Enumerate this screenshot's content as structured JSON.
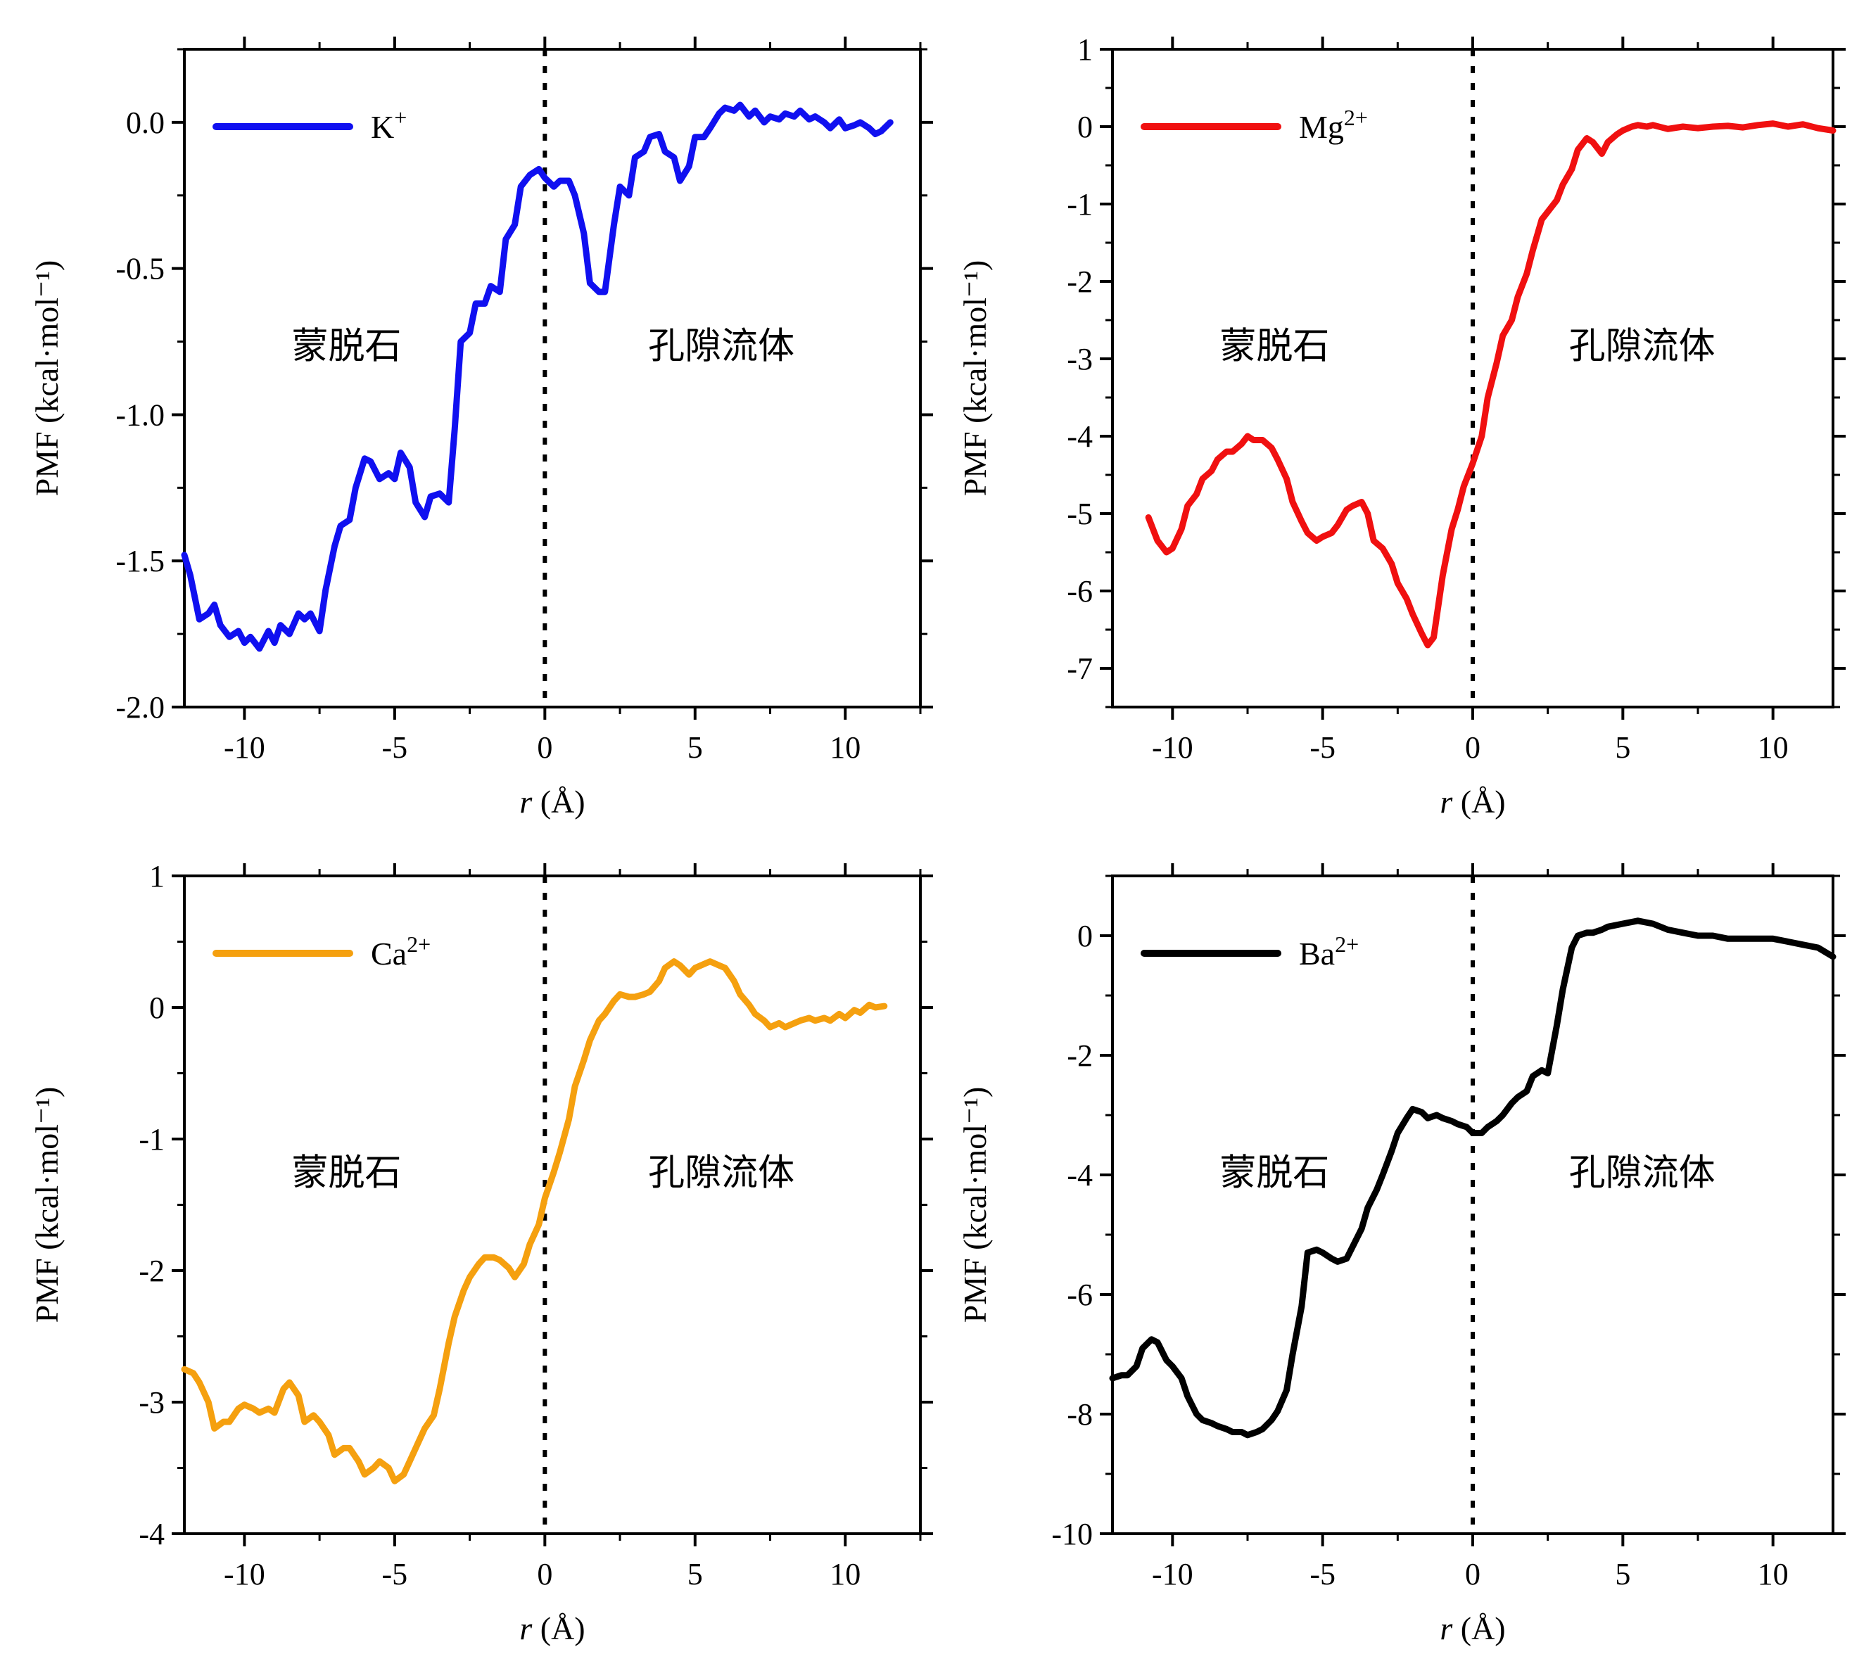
{
  "chart_data": [
    {
      "type": "line",
      "xlabel": "r (Å)",
      "xlabel_italic": "r",
      "xlabel_unit": "(Å)",
      "ylabel": "PMF (kcal·mol⁻¹)",
      "xlim": [
        -12,
        12.5
      ],
      "ylim": [
        -2.0,
        0.25
      ],
      "xticks": [
        "-10",
        "-5",
        "0",
        "5",
        "10"
      ],
      "xtick_values": [
        -10,
        -5,
        0,
        5,
        10
      ],
      "yticks": [
        "-2.0",
        "-1.5",
        "-1.0",
        "-0.5",
        "0.0"
      ],
      "ytick_values": [
        -2.0,
        -1.5,
        -1.0,
        -0.5,
        0.0
      ],
      "divider_x": 0,
      "region_left": "蒙脱石",
      "region_right": "孔隙流体",
      "legend_position": "top-left",
      "series": [
        {
          "name": "K⁺",
          "color": "#1010f0",
          "x": [
            -12,
            -11.8,
            -11.5,
            -11.2,
            -11,
            -10.8,
            -10.5,
            -10.2,
            -10,
            -9.8,
            -9.5,
            -9.2,
            -9,
            -8.8,
            -8.5,
            -8.2,
            -8,
            -7.8,
            -7.5,
            -7.3,
            -7,
            -6.8,
            -6.5,
            -6.3,
            -6,
            -5.8,
            -5.5,
            -5.2,
            -5,
            -4.8,
            -4.5,
            -4.3,
            -4,
            -3.8,
            -3.5,
            -3.2,
            -3,
            -2.8,
            -2.5,
            -2.3,
            -2,
            -1.8,
            -1.5,
            -1.3,
            -1,
            -0.8,
            -0.5,
            -0.2,
            0,
            0.3,
            0.5,
            0.8,
            1,
            1.3,
            1.5,
            1.8,
            2,
            2.3,
            2.5,
            2.8,
            3,
            3.3,
            3.5,
            3.8,
            4,
            4.3,
            4.5,
            4.8,
            5,
            5.3,
            5.5,
            5.8,
            6,
            6.3,
            6.5,
            6.8,
            7,
            7.3,
            7.5,
            7.8,
            8,
            8.3,
            8.5,
            8.8,
            9,
            9.3,
            9.5,
            9.8,
            10,
            10.3,
            10.5,
            10.8,
            11,
            11.2,
            11.5
          ],
          "y": [
            -1.48,
            -1.55,
            -1.7,
            -1.68,
            -1.65,
            -1.72,
            -1.76,
            -1.74,
            -1.78,
            -1.76,
            -1.8,
            -1.74,
            -1.78,
            -1.72,
            -1.75,
            -1.68,
            -1.7,
            -1.68,
            -1.74,
            -1.6,
            -1.45,
            -1.38,
            -1.36,
            -1.25,
            -1.15,
            -1.16,
            -1.22,
            -1.2,
            -1.22,
            -1.13,
            -1.18,
            -1.3,
            -1.35,
            -1.28,
            -1.27,
            -1.3,
            -1.05,
            -0.75,
            -0.72,
            -0.62,
            -0.62,
            -0.56,
            -0.58,
            -0.4,
            -0.35,
            -0.22,
            -0.18,
            -0.16,
            -0.19,
            -0.22,
            -0.2,
            -0.2,
            -0.25,
            -0.38,
            -0.55,
            -0.58,
            -0.58,
            -0.35,
            -0.22,
            -0.25,
            -0.12,
            -0.1,
            -0.05,
            -0.04,
            -0.1,
            -0.12,
            -0.2,
            -0.15,
            -0.05,
            -0.05,
            -0.02,
            0.03,
            0.05,
            0.04,
            0.06,
            0.02,
            0.04,
            0.0,
            0.02,
            0.01,
            0.03,
            0.02,
            0.04,
            0.01,
            0.02,
            0.0,
            -0.02,
            0.01,
            -0.02,
            -0.01,
            0.0,
            -0.02,
            -0.04,
            -0.03,
            0.0
          ]
        }
      ]
    },
    {
      "type": "line",
      "xlabel": "r (Å)",
      "xlabel_italic": "r",
      "xlabel_unit": "(Å)",
      "ylabel": "PMF (kcal·mol⁻¹)",
      "xlim": [
        -12,
        12
      ],
      "ylim": [
        -7.5,
        1.0
      ],
      "xticks": [
        "-10",
        "-5",
        "0",
        "5",
        "10"
      ],
      "xtick_values": [
        -10,
        -5,
        0,
        5,
        10
      ],
      "yticks": [
        "1",
        "0",
        "-1",
        "-2",
        "-3",
        "-4",
        "-5",
        "-6",
        "-7"
      ],
      "ytick_values": [
        1,
        0,
        -1,
        -2,
        -3,
        -4,
        -5,
        -6,
        -7
      ],
      "divider_x": 0,
      "region_left": "蒙脱石",
      "region_right": "孔隙流体",
      "legend_position": "top-left",
      "series": [
        {
          "name": "Mg²⁺",
          "color": "#f01010",
          "x": [
            -10.8,
            -10.5,
            -10.2,
            -10,
            -9.7,
            -9.5,
            -9.2,
            -9,
            -8.7,
            -8.5,
            -8.2,
            -8,
            -7.7,
            -7.5,
            -7.3,
            -7,
            -6.7,
            -6.5,
            -6.2,
            -6,
            -5.7,
            -5.5,
            -5.2,
            -5,
            -4.7,
            -4.5,
            -4.2,
            -4,
            -3.7,
            -3.5,
            -3.3,
            -3,
            -2.7,
            -2.5,
            -2.2,
            -2,
            -1.7,
            -1.5,
            -1.3,
            -1,
            -0.7,
            -0.5,
            -0.3,
            0,
            0.3,
            0.5,
            0.8,
            1,
            1.3,
            1.5,
            1.8,
            2,
            2.3,
            2.5,
            2.8,
            3,
            3.3,
            3.5,
            3.8,
            4,
            4.3,
            4.5,
            4.8,
            5,
            5.3,
            5.5,
            5.8,
            6,
            6.5,
            7,
            7.5,
            8,
            8.5,
            9,
            9.5,
            10,
            10.5,
            11,
            11.5,
            12
          ],
          "y": [
            -5.05,
            -5.35,
            -5.5,
            -5.45,
            -5.2,
            -4.9,
            -4.75,
            -4.55,
            -4.45,
            -4.3,
            -4.2,
            -4.2,
            -4.1,
            -4.0,
            -4.05,
            -4.05,
            -4.15,
            -4.3,
            -4.55,
            -4.85,
            -5.1,
            -5.25,
            -5.35,
            -5.3,
            -5.25,
            -5.15,
            -4.95,
            -4.9,
            -4.85,
            -5.0,
            -5.35,
            -5.45,
            -5.65,
            -5.9,
            -6.1,
            -6.3,
            -6.55,
            -6.7,
            -6.6,
            -5.8,
            -5.2,
            -4.95,
            -4.65,
            -4.35,
            -4.0,
            -3.5,
            -3.05,
            -2.7,
            -2.5,
            -2.2,
            -1.9,
            -1.6,
            -1.2,
            -1.1,
            -0.95,
            -0.75,
            -0.55,
            -0.3,
            -0.15,
            -0.2,
            -0.35,
            -0.2,
            -0.1,
            -0.05,
            0.0,
            0.02,
            0.0,
            0.02,
            -0.03,
            0.0,
            -0.02,
            0.0,
            0.01,
            -0.01,
            0.02,
            0.04,
            0.0,
            0.03,
            -0.02,
            -0.05
          ]
        }
      ]
    },
    {
      "type": "line",
      "xlabel": "r (Å)",
      "xlabel_italic": "r",
      "xlabel_unit": "(Å)",
      "ylabel": "PMF (kcal·mol⁻¹)",
      "xlim": [
        -12,
        12.5
      ],
      "ylim": [
        -4,
        1
      ],
      "xticks": [
        "-10",
        "-5",
        "0",
        "5",
        "10"
      ],
      "xtick_values": [
        -10,
        -5,
        0,
        5,
        10
      ],
      "yticks": [
        "1",
        "0",
        "-1",
        "-2",
        "-3",
        "-4"
      ],
      "ytick_values": [
        1,
        0,
        -1,
        -2,
        -3,
        -4
      ],
      "divider_x": 0,
      "region_left": "蒙脱石",
      "region_right": "孔隙流体",
      "legend_position": "top-left",
      "series": [
        {
          "name": "Ca²⁺",
          "color": "#f5a00f",
          "x": [
            -12,
            -11.7,
            -11.5,
            -11.2,
            -11,
            -10.7,
            -10.5,
            -10.2,
            -10,
            -9.7,
            -9.5,
            -9.2,
            -9,
            -8.7,
            -8.5,
            -8.2,
            -8,
            -7.7,
            -7.5,
            -7.2,
            -7,
            -6.7,
            -6.5,
            -6.2,
            -6,
            -5.7,
            -5.5,
            -5.2,
            -5,
            -4.7,
            -4.5,
            -4.2,
            -4,
            -3.7,
            -3.5,
            -3.2,
            -3,
            -2.7,
            -2.5,
            -2.2,
            -2,
            -1.7,
            -1.5,
            -1.2,
            -1,
            -0.7,
            -0.5,
            -0.2,
            0,
            0.3,
            0.5,
            0.8,
            1,
            1.3,
            1.5,
            1.8,
            2,
            2.3,
            2.5,
            2.8,
            3,
            3.3,
            3.5,
            3.8,
            4,
            4.3,
            4.5,
            4.8,
            5,
            5.3,
            5.5,
            5.8,
            6,
            6.3,
            6.5,
            6.8,
            7,
            7.3,
            7.5,
            7.8,
            8,
            8.3,
            8.5,
            8.8,
            9,
            9.3,
            9.5,
            9.8,
            10,
            10.3,
            10.5,
            10.8,
            11,
            11.3
          ],
          "y": [
            -2.75,
            -2.78,
            -2.85,
            -3.0,
            -3.2,
            -3.15,
            -3.15,
            -3.05,
            -3.02,
            -3.05,
            -3.08,
            -3.05,
            -3.08,
            -2.9,
            -2.85,
            -2.95,
            -3.15,
            -3.1,
            -3.15,
            -3.25,
            -3.4,
            -3.35,
            -3.35,
            -3.45,
            -3.55,
            -3.5,
            -3.45,
            -3.5,
            -3.6,
            -3.55,
            -3.45,
            -3.3,
            -3.2,
            -3.1,
            -2.9,
            -2.55,
            -2.35,
            -2.15,
            -2.05,
            -1.95,
            -1.9,
            -1.9,
            -1.92,
            -1.98,
            -2.05,
            -1.95,
            -1.8,
            -1.65,
            -1.45,
            -1.25,
            -1.1,
            -0.85,
            -0.6,
            -0.4,
            -0.25,
            -0.1,
            -0.05,
            0.05,
            0.1,
            0.08,
            0.08,
            0.1,
            0.12,
            0.2,
            0.3,
            0.35,
            0.32,
            0.25,
            0.3,
            0.33,
            0.35,
            0.32,
            0.3,
            0.2,
            0.1,
            0.02,
            -0.05,
            -0.1,
            -0.15,
            -0.12,
            -0.15,
            -0.12,
            -0.1,
            -0.08,
            -0.1,
            -0.08,
            -0.1,
            -0.05,
            -0.08,
            -0.02,
            -0.04,
            0.02,
            0.0,
            0.01
          ]
        }
      ]
    },
    {
      "type": "line",
      "xlabel": "r (Å)",
      "xlabel_italic": "r",
      "xlabel_unit": "(Å)",
      "ylabel": "PMF (kcal·mol⁻¹)",
      "xlim": [
        -12,
        12
      ],
      "ylim": [
        -10,
        1
      ],
      "xticks": [
        "-10",
        "-5",
        "0",
        "5",
        "10"
      ],
      "xtick_values": [
        -10,
        -5,
        0,
        5,
        10
      ],
      "yticks": [
        "0",
        "-2",
        "-4",
        "-6",
        "-8",
        "-10"
      ],
      "ytick_values": [
        0,
        -2,
        -4,
        -6,
        -8,
        -10
      ],
      "divider_x": 0,
      "region_left": "蒙脱石",
      "region_right": "孔隙流体",
      "legend_position": "top-left",
      "series": [
        {
          "name": "Ba²⁺",
          "color": "#000000",
          "x": [
            -12,
            -11.7,
            -11.5,
            -11.2,
            -11,
            -10.7,
            -10.5,
            -10.2,
            -10,
            -9.7,
            -9.5,
            -9.2,
            -9,
            -8.7,
            -8.5,
            -8.2,
            -8,
            -7.7,
            -7.5,
            -7.2,
            -7,
            -6.7,
            -6.5,
            -6.2,
            -6,
            -5.7,
            -5.5,
            -5.2,
            -5,
            -4.7,
            -4.5,
            -4.2,
            -4,
            -3.7,
            -3.5,
            -3.2,
            -3,
            -2.7,
            -2.5,
            -2.2,
            -2,
            -1.7,
            -1.5,
            -1.2,
            -1,
            -0.7,
            -0.5,
            -0.2,
            0,
            0.3,
            0.5,
            0.8,
            1,
            1.3,
            1.5,
            1.8,
            2,
            2.3,
            2.5,
            2.8,
            3,
            3.3,
            3.5,
            3.8,
            4,
            4.3,
            4.5,
            5,
            5.5,
            6,
            6.5,
            7,
            7.5,
            8,
            8.5,
            9,
            9.5,
            10,
            10.5,
            11,
            11.5,
            12
          ],
          "y": [
            -7.4,
            -7.35,
            -7.35,
            -7.2,
            -6.9,
            -6.75,
            -6.8,
            -7.1,
            -7.2,
            -7.4,
            -7.7,
            -8.0,
            -8.1,
            -8.15,
            -8.2,
            -8.25,
            -8.3,
            -8.3,
            -8.35,
            -8.3,
            -8.25,
            -8.1,
            -7.95,
            -7.6,
            -7.0,
            -6.2,
            -5.3,
            -5.25,
            -5.3,
            -5.4,
            -5.45,
            -5.4,
            -5.2,
            -4.9,
            -4.55,
            -4.25,
            -4.0,
            -3.6,
            -3.3,
            -3.05,
            -2.9,
            -2.95,
            -3.05,
            -3.0,
            -3.05,
            -3.1,
            -3.15,
            -3.2,
            -3.3,
            -3.3,
            -3.2,
            -3.1,
            -3.0,
            -2.8,
            -2.7,
            -2.6,
            -2.35,
            -2.25,
            -2.3,
            -1.5,
            -0.9,
            -0.2,
            0.0,
            0.05,
            0.05,
            0.1,
            0.15,
            0.2,
            0.25,
            0.2,
            0.1,
            0.05,
            0.0,
            0.0,
            -0.05,
            -0.05,
            -0.05,
            -0.05,
            -0.1,
            -0.15,
            -0.2,
            -0.35
          ]
        }
      ]
    }
  ]
}
